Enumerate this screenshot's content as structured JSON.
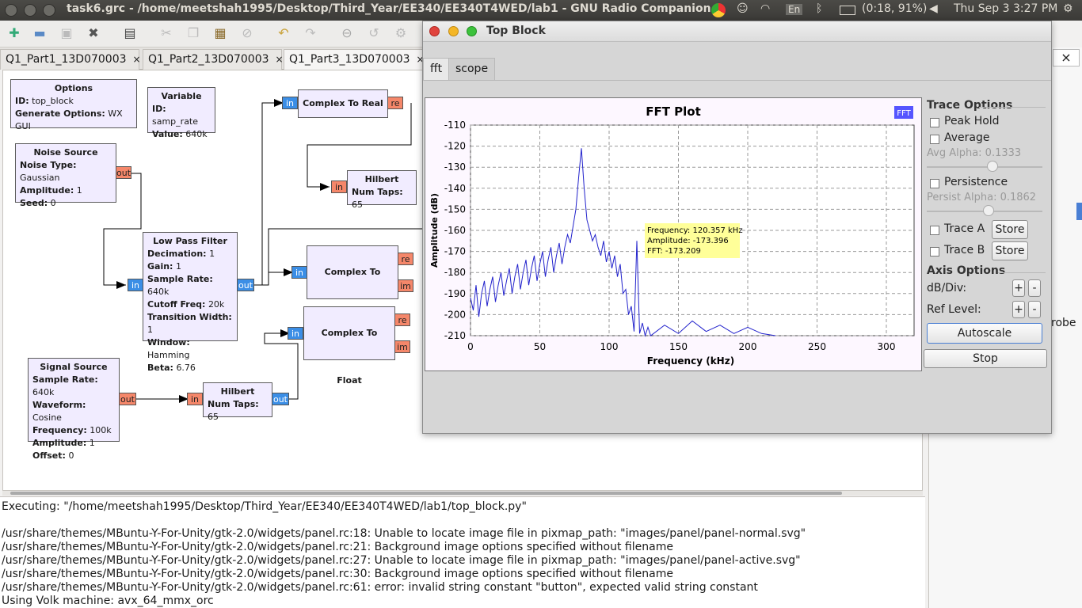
{
  "os_bar": {
    "window_title": "task6.grc - /home/meetshah1995/Desktop/Third_Year/EE340/EE340T4WED/lab1 - GNU Radio Companion",
    "keyboard": "En",
    "battery": "(0:18, 91%)",
    "clock": "Thu Sep  3  3:27 PM"
  },
  "tabs": [
    {
      "label": "Q1_Part1_13D070003"
    },
    {
      "label": "Q1_Part2_13D070003"
    },
    {
      "label": "Q1_Part3_13D070003"
    }
  ],
  "tab_close": "×",
  "blocks": {
    "options": {
      "title": "Options",
      "k1": "ID:",
      "v1": "top_block",
      "k2": "Generate Options:",
      "v2": "WX GUI"
    },
    "variable": {
      "title": "Variable",
      "k1": "ID:",
      "v1": "samp_rate",
      "k2": "Value:",
      "v2": "640k"
    },
    "noise": {
      "title": "Noise Source",
      "k1": "Noise Type:",
      "v1": "Gaussian",
      "k2": "Amplitude:",
      "v2": "1",
      "k3": "Seed:",
      "v3": "0"
    },
    "lpf": {
      "title": "Low Pass Filter",
      "k1": "Decimation:",
      "v1": "1",
      "k2": "Gain:",
      "v2": "1",
      "k3": "Sample Rate:",
      "v3": "640k",
      "k4": "Cutoff Freq:",
      "v4": "20k",
      "k5": "Transition Width:",
      "v5": "1",
      "k6": "Window:",
      "v6": "Hamming",
      "k7": "Beta:",
      "v7": "6.76"
    },
    "signal": {
      "title": "Signal Source",
      "k1": "Sample Rate:",
      "v1": "640k",
      "k2": "Waveform:",
      "v2": "Cosine",
      "k3": "Frequency:",
      "v3": "100k",
      "k4": "Amplitude:",
      "v4": "1",
      "k5": "Offset:",
      "v5": "0"
    },
    "hilbert1": {
      "title": "Hilbert",
      "k1": "Num Taps:",
      "v1": "65"
    },
    "hilbert2": {
      "title": "Hilbert",
      "k1": "Num Taps:",
      "v1": "65"
    },
    "c2r": {
      "title": "Complex To Real"
    },
    "c2f1": {
      "title": "Complex To Float"
    },
    "c2f2": {
      "title": "Complex To Float"
    }
  },
  "ports": {
    "in": "in",
    "out": "out",
    "re": "re",
    "im": "im"
  },
  "console_lines": [
    "Executing: \"/home/meetshah1995/Desktop/Third_Year/EE340/EE340T4WED/lab1/top_block.py\"",
    "",
    "/usr/share/themes/MBuntu-Y-For-Unity/gtk-2.0/widgets/panel.rc:18: Unable to locate image file in pixmap_path: \"images/panel/panel-normal.svg\"",
    "/usr/share/themes/MBuntu-Y-For-Unity/gtk-2.0/widgets/panel.rc:21: Background image options specified without filename",
    "/usr/share/themes/MBuntu-Y-For-Unity/gtk-2.0/widgets/panel.rc:27: Unable to locate image file in pixmap_path: \"images/panel/panel-active.svg\"",
    "/usr/share/themes/MBuntu-Y-For-Unity/gtk-2.0/widgets/panel.rc:30: Background image options specified without filename",
    "/usr/share/themes/MBuntu-Y-For-Unity/gtk-2.0/widgets/panel.rc:61: error: invalid string constant \"button\", expected valid string constant",
    "Using Volk machine: avx_64_mmx_orc"
  ],
  "right_panel": {
    "partial_text": "robe",
    "close": "×"
  },
  "top_block": {
    "title": "Top Block",
    "tabs": [
      "fft",
      "scope"
    ],
    "controls": {
      "trace_options": "Trace Options",
      "peak_hold": "Peak Hold",
      "average": "Average",
      "avg_alpha": "Avg Alpha: 0.1333",
      "persistence": "Persistence",
      "persist_alpha": "Persist Alpha: 0.1862",
      "trace_a": "Trace A",
      "trace_b": "Trace B",
      "store": "Store",
      "axis_options": "Axis Options",
      "db_div": "dB/Div:",
      "ref_level": "Ref Level:",
      "plus": "+",
      "minus": "-",
      "autoscale": "Autoscale",
      "stop": "Stop"
    },
    "slider_levels": {
      "avg_alpha": 0.1333,
      "persist_alpha": 0.1862
    }
  },
  "chart_data": {
    "type": "line",
    "title": "FFT Plot",
    "xlabel": "Frequency (kHz)",
    "ylabel": "Amplitude (dB)",
    "xlim": [
      0,
      320
    ],
    "ylim": [
      -210,
      -110
    ],
    "xticks": [
      0,
      50,
      100,
      150,
      200,
      250,
      300
    ],
    "yticks": [
      -110,
      -120,
      -130,
      -140,
      -150,
      -160,
      -170,
      -180,
      -190,
      -200,
      -210
    ],
    "grid": true,
    "legend": {
      "entry": "FFT",
      "placement": "top-right",
      "color": "#5555ff"
    },
    "series_color": "#2222cc",
    "series": [
      {
        "name": "FFT",
        "x": [
          0,
          2,
          4,
          6,
          8,
          10,
          12,
          14,
          16,
          18,
          20,
          22,
          24,
          26,
          28,
          30,
          32,
          34,
          36,
          38,
          40,
          42,
          44,
          46,
          48,
          50,
          52,
          54,
          56,
          58,
          60,
          62,
          64,
          66,
          68,
          70,
          72,
          74,
          76,
          78,
          80,
          82,
          84,
          86,
          88,
          90,
          92,
          94,
          96,
          98,
          100,
          102,
          104,
          106,
          108,
          110,
          112,
          114,
          116,
          118,
          120,
          122,
          124,
          126,
          128,
          130,
          140,
          150,
          160,
          170,
          180,
          190,
          200,
          210,
          220
        ],
        "y": [
          -192,
          -198,
          -186,
          -201,
          -190,
          -184,
          -196,
          -188,
          -182,
          -194,
          -186,
          -180,
          -191,
          -184,
          -178,
          -190,
          -182,
          -176,
          -188,
          -180,
          -174,
          -186,
          -178,
          -172,
          -184,
          -176,
          -170,
          -182,
          -174,
          -168,
          -180,
          -172,
          -166,
          -176,
          -168,
          -162,
          -166,
          -158,
          -150,
          -135,
          -121,
          -140,
          -155,
          -160,
          -165,
          -162,
          -168,
          -172,
          -165,
          -175,
          -170,
          -178,
          -172,
          -182,
          -176,
          -190,
          -188,
          -200,
          -196,
          -208,
          -165,
          -209,
          -204,
          -210,
          -206,
          -210,
          -205,
          -209,
          -203,
          -208,
          -205,
          -209,
          -206,
          -209,
          -210
        ]
      }
    ],
    "annotation": {
      "frequency": "Frequency: 120.357 kHz",
      "amplitude": "Amplitude: -173.396",
      "fft": "FFT: -173.209"
    }
  }
}
